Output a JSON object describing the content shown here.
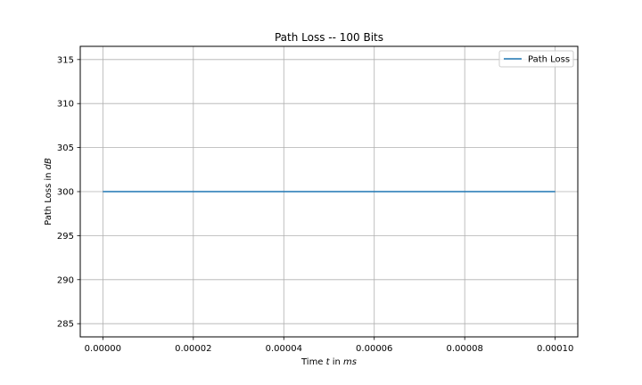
{
  "chart_data": {
    "type": "line",
    "title": "Path Loss -- 100 Bits",
    "xlabel_parts": [
      {
        "text": "Time ",
        "italic": false
      },
      {
        "text": "t",
        "italic": true
      },
      {
        "text": " in ",
        "italic": false
      },
      {
        "text": "ms",
        "italic": true
      }
    ],
    "ylabel_parts": [
      {
        "text": "Path Loss in ",
        "italic": false
      },
      {
        "text": "dB",
        "italic": true
      }
    ],
    "xlim": [
      -5e-06,
      0.000105
    ],
    "ylim": [
      283.5,
      316.5
    ],
    "x_ticks": [
      0.0,
      2e-05,
      4e-05,
      6e-05,
      8e-05,
      0.0001
    ],
    "x_tick_labels": [
      "0.00000",
      "0.00002",
      "0.00004",
      "0.00006",
      "0.00008",
      "0.00010"
    ],
    "y_ticks": [
      285,
      290,
      295,
      300,
      305,
      310,
      315
    ],
    "y_tick_labels": [
      "285",
      "290",
      "295",
      "300",
      "305",
      "310",
      "315"
    ],
    "grid": true,
    "legend_position": "top-right",
    "series": [
      {
        "name": "Path Loss",
        "color": "#1f77b4",
        "x": [
          0.0,
          0.0001
        ],
        "y": [
          300,
          300
        ]
      }
    ]
  }
}
